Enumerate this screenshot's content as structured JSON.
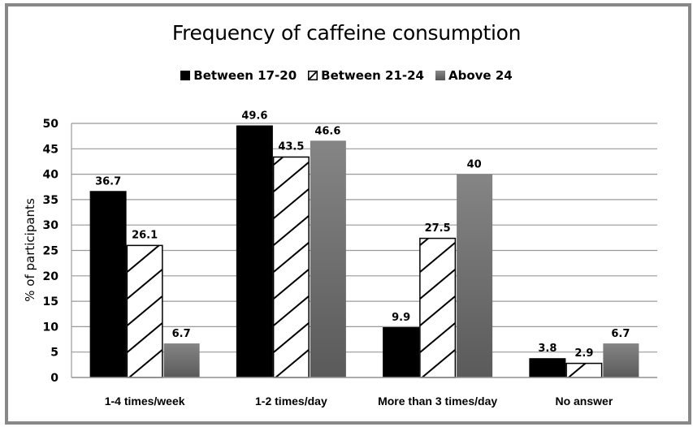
{
  "chart_data": {
    "type": "bar",
    "title": "Frequency of caffeine consumption",
    "xlabel": "",
    "ylabel": "% of participants",
    "ylim": [
      0,
      50
    ],
    "yticks": [
      0,
      5,
      10,
      15,
      20,
      25,
      30,
      35,
      40,
      45,
      50
    ],
    "grid": true,
    "legend_position": "top-center",
    "categories": [
      "1-4 times/week",
      "1-2 times/day",
      "More than 3 times/day",
      "No answer"
    ],
    "series": [
      {
        "name": "Between 17-20",
        "values": [
          36.7,
          49.6,
          9.9,
          3.8
        ],
        "labels": [
          "36.7",
          "49.6",
          "9.9",
          "3.8"
        ],
        "fill": "#000000",
        "pattern": "solid"
      },
      {
        "name": "Between 21-24",
        "values": [
          26.1,
          43.5,
          27.5,
          2.9
        ],
        "labels": [
          "26.1",
          "43.5",
          "27.5",
          "2.9"
        ],
        "fill": "#ffffff",
        "pattern": "diagonal-hatch"
      },
      {
        "name": "Above 24",
        "values": [
          6.7,
          46.6,
          40,
          6.7
        ],
        "labels": [
          "6.7",
          "46.6",
          "40",
          "6.7"
        ],
        "fill": "#6e6e6e",
        "pattern": "gradient-gray"
      }
    ]
  },
  "colors": {
    "frame": "#888888",
    "grid": "#999999"
  }
}
